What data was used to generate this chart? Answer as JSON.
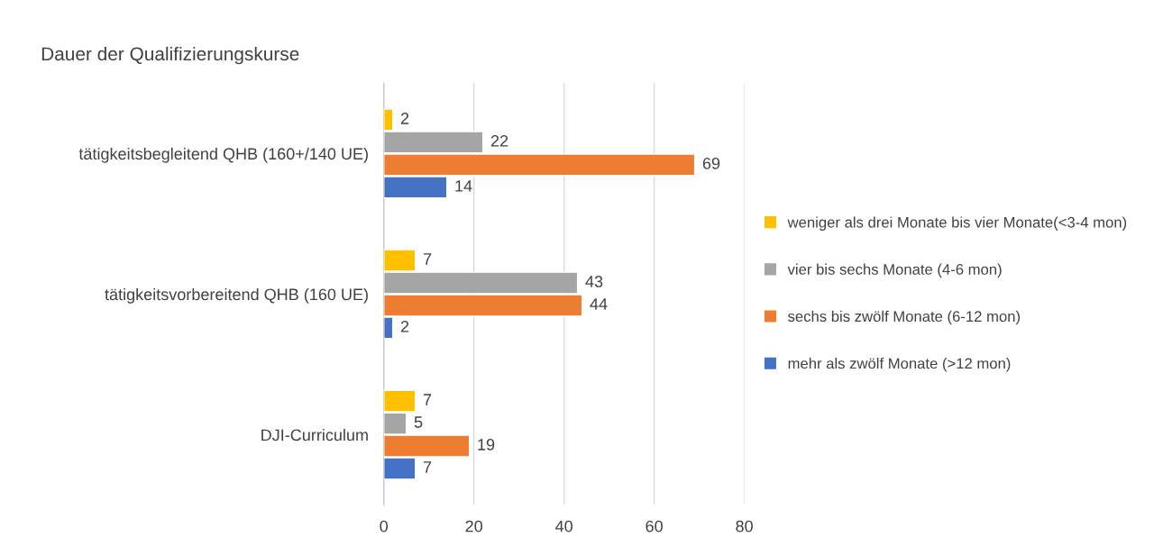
{
  "chart_data": {
    "type": "bar",
    "orientation": "horizontal",
    "title": "Dauer der Qualifizierungskurse",
    "categories": [
      "tätigkeitsbegleitend QHB (160+/140 UE)",
      "tätigkeitsvorbereitend QHB (160 UE)",
      "DJI-Curriculum"
    ],
    "series": [
      {
        "name": "weniger als drei Monate bis vier Monate(<3-4 mon)",
        "color": "#ffc000",
        "values": [
          2,
          7,
          7
        ]
      },
      {
        "name": "vier bis sechs Monate (4-6 mon)",
        "color": "#a5a5a5",
        "values": [
          22,
          43,
          5
        ]
      },
      {
        "name": "sechs bis zwölf Monate (6-12 mon)",
        "color": "#ed7d31",
        "values": [
          69,
          44,
          19
        ]
      },
      {
        "name": "mehr als zwölf Monate (>12 mon)",
        "color": "#4472c4",
        "values": [
          14,
          2,
          7
        ]
      }
    ],
    "xlim": [
      0,
      80
    ],
    "xticks": [
      0,
      20,
      40,
      60,
      80
    ],
    "grid": "x",
    "legend": "right",
    "data_labels": true
  }
}
